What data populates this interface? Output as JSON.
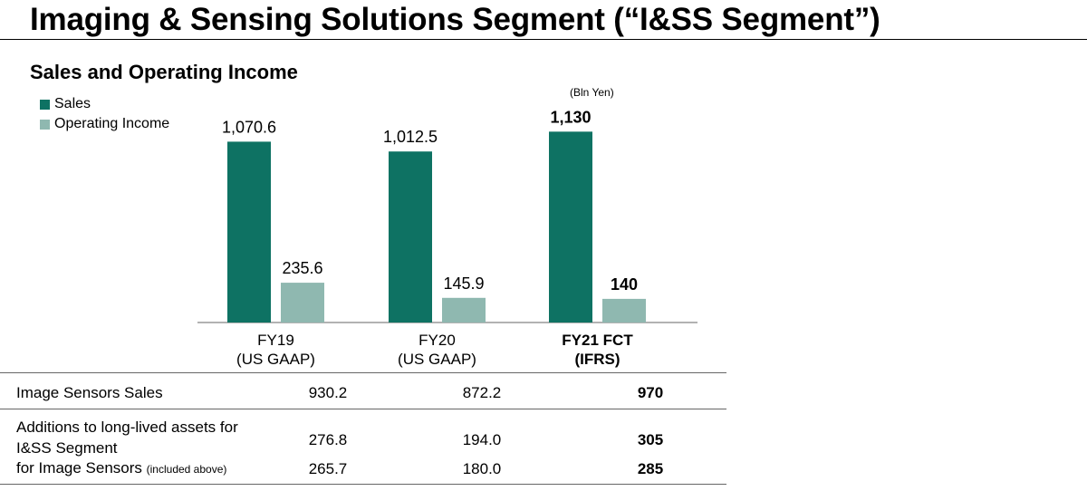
{
  "title": "Imaging & Sensing Solutions Segment (“I&SS Segment”)",
  "subtitle": "Sales and Operating Income",
  "unit": "(Bln Yen)",
  "colors": {
    "sales": "#0e7263",
    "operating_income": "#8fb8b0"
  },
  "chart_data": {
    "type": "bar",
    "title": "Sales and Operating Income",
    "categories": [
      {
        "line1": "FY19",
        "line2": "(US GAAP)",
        "bold": false
      },
      {
        "line1": "FY20",
        "line2": "(US GAAP)",
        "bold": false
      },
      {
        "line1": "FY21 FCT",
        "line2": "(IFRS)",
        "bold": true
      }
    ],
    "series": [
      {
        "name": "Sales",
        "values": [
          1070.6,
          1012.5,
          1130
        ],
        "labels": [
          "1,070.6",
          "1,012.5",
          "1,130"
        ]
      },
      {
        "name": "Operating Income",
        "values": [
          235.6,
          145.9,
          140
        ],
        "labels": [
          "235.6",
          "145.9",
          "140"
        ]
      }
    ],
    "ylim": [
      0,
      1180
    ],
    "legend": "top-left",
    "grid": false
  },
  "table": {
    "rows": [
      {
        "label": "Image Sensors Sales",
        "values": [
          "930.2",
          "872.2",
          "970"
        ]
      },
      {
        "label_lines": [
          "Additions to long-lived assets for",
          "I&SS Segment"
        ],
        "values": [
          "276.8",
          "194.0",
          "305"
        ]
      },
      {
        "label": "for Image Sensors",
        "label_note": "(included above)",
        "values": [
          "265.7",
          "180.0",
          "285"
        ]
      }
    ]
  }
}
